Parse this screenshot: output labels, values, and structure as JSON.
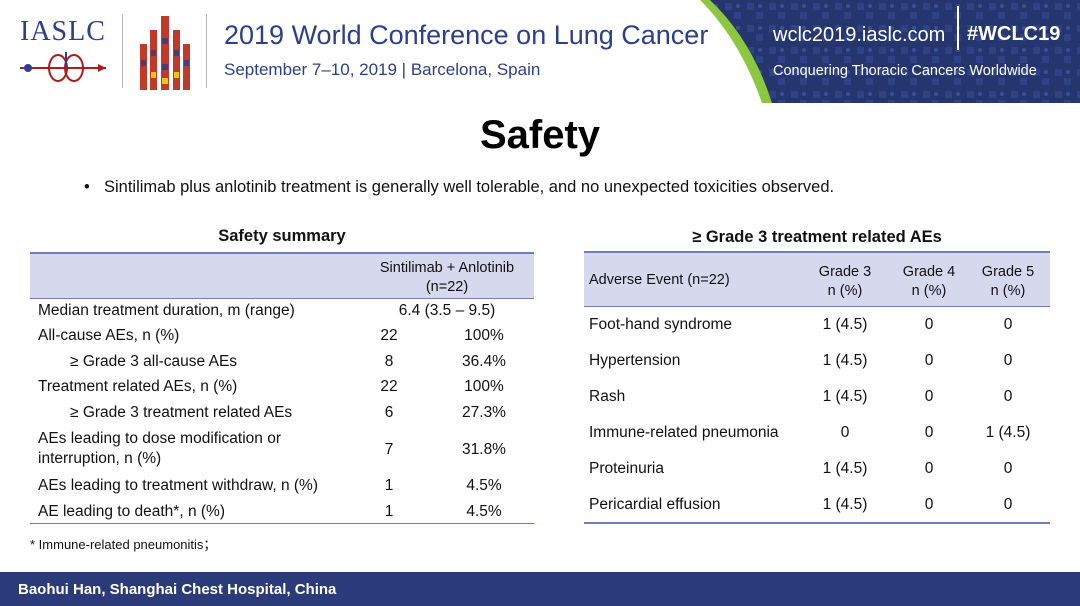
{
  "header": {
    "org": "IASLC",
    "conference_title": "2019 World Conference on Lung Cancer",
    "conference_subtitle": "September 7–10, 2019 | Barcelona, Spain",
    "url": "wclc2019.iaslc.com",
    "hashtag": "#WCLC19",
    "motto": "Conquering Thoracic Cancers Worldwide",
    "colors": {
      "brand_blue": "#2b3f8f",
      "banner_navy": "#25356e",
      "accent_green": "#8dc63f"
    }
  },
  "slide": {
    "title": "Safety",
    "bullet": "Sintilimab plus anlotinib treatment is generally well tolerable, and no unexpected toxicities observed."
  },
  "safety_summary": {
    "caption": "Safety summary",
    "column_header_line1": "Sintilimab + Anlotinib",
    "column_header_line2": "(n=22)",
    "rows": [
      {
        "label": "Median treatment duration, m (range)",
        "value": "6.4 (3.5 – 9.5)"
      },
      {
        "label": "All-cause AEs, n (%)",
        "n": "22",
        "pct": "100%"
      },
      {
        "label": "≥ Grade 3 all-cause AEs",
        "n": "8",
        "pct": "36.4%"
      },
      {
        "label": "Treatment related AEs, n (%)",
        "n": "22",
        "pct": "100%"
      },
      {
        "label": "≥ Grade 3 treatment related AEs",
        "n": "6",
        "pct": "27.3%"
      },
      {
        "label_line1": "AEs leading to dose modification or",
        "label_line2": "interruption, n (%)",
        "n": "7",
        "pct": "31.8%"
      },
      {
        "label": "AEs leading to treatment withdraw, n (%)",
        "n": "1",
        "pct": "4.5%"
      },
      {
        "label": "AE leading to death*, n (%)",
        "n": "1",
        "pct": "4.5%"
      }
    ],
    "footnote": "* Immune-related pneumonitis；"
  },
  "grade3_table": {
    "caption": "≥ Grade 3 treatment related AEs",
    "headers": {
      "event": "Adverse Event (n=22)",
      "g3_line1": "Grade 3",
      "g3_line2": "n (%)",
      "g4_line1": "Grade 4",
      "g4_line2": "n (%)",
      "g5_line1": "Grade 5",
      "g5_line2": "n (%)"
    },
    "rows": [
      {
        "event": "Foot-hand syndrome",
        "g3": "1 (4.5)",
        "g4": "0",
        "g5": "0"
      },
      {
        "event": "Hypertension",
        "g3": "1 (4.5)",
        "g4": "0",
        "g5": "0"
      },
      {
        "event": "Rash",
        "g3": "1 (4.5)",
        "g4": "0",
        "g5": "0"
      },
      {
        "event": "Immune-related pneumonia",
        "g3": "0",
        "g4": "0",
        "g5": "1 (4.5)"
      },
      {
        "event": "Proteinuria",
        "g3": "1 (4.5)",
        "g4": "0",
        "g5": "0"
      },
      {
        "event": "Pericardial effusion",
        "g3": "1 (4.5)",
        "g4": "0",
        "g5": "0"
      }
    ]
  },
  "footer": {
    "presenter": "Baohui Han, Shanghai Chest Hospital, China"
  }
}
